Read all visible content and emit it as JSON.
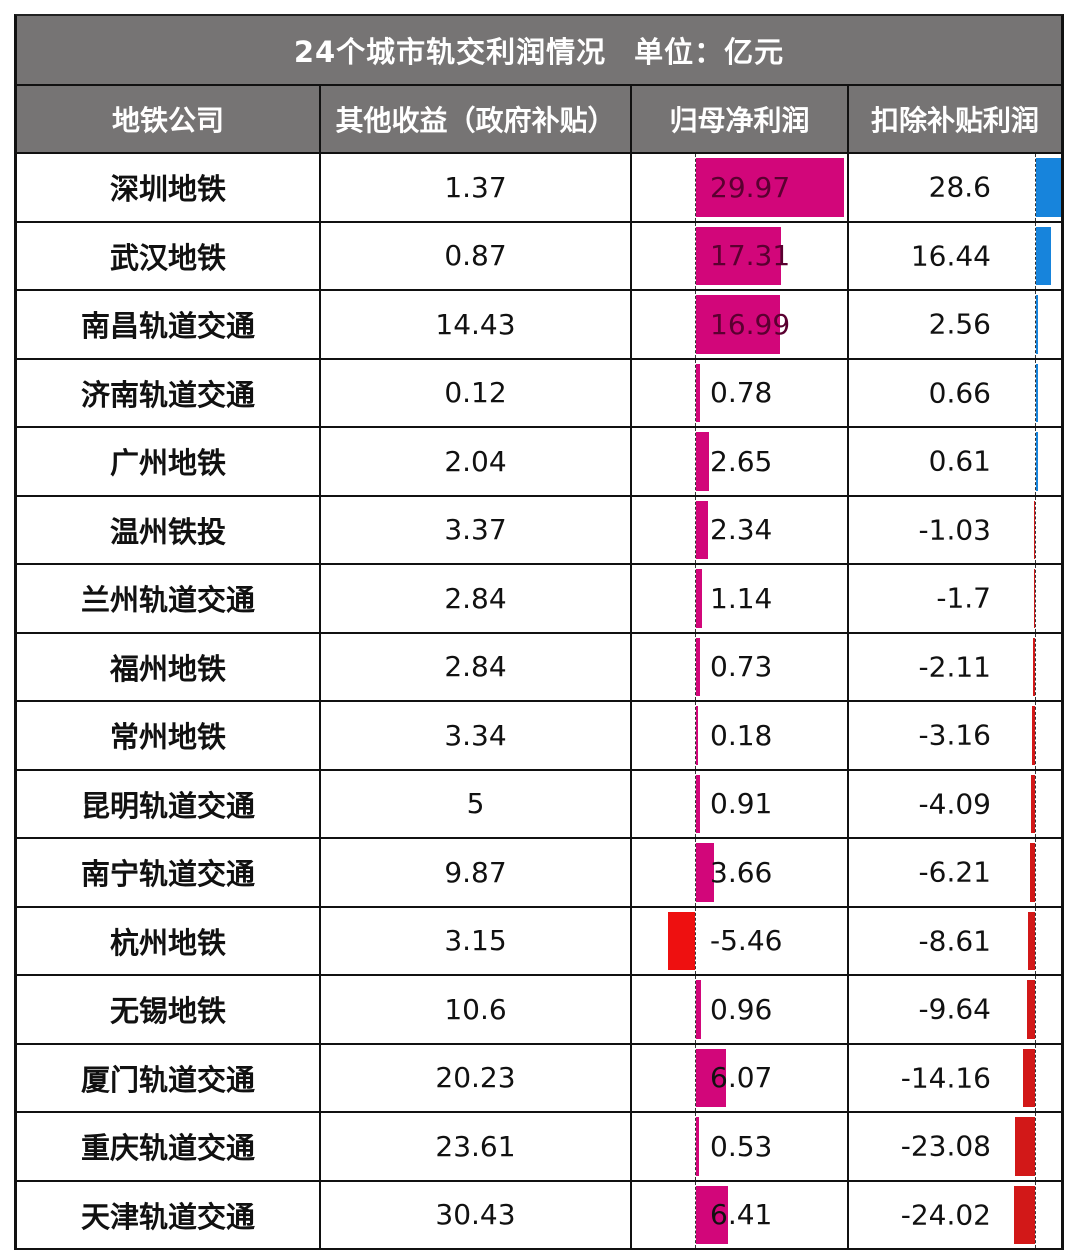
{
  "table": {
    "title": "24个城市轨交利润情况",
    "unit": "单位：亿元",
    "headers": [
      "地铁公司",
      "其他收益（政府补贴）",
      "归母净利润",
      "扣除补贴利润"
    ],
    "rows": [
      {
        "company": "深圳地铁",
        "subsidy": "1.37",
        "net_profit": "29.97",
        "ex_subsidy": "28.6"
      },
      {
        "company": "武汉地铁",
        "subsidy": "0.87",
        "net_profit": "17.31",
        "ex_subsidy": "16.44"
      },
      {
        "company": "南昌轨道交通",
        "subsidy": "14.43",
        "net_profit": "16.99",
        "ex_subsidy": "2.56"
      },
      {
        "company": "济南轨道交通",
        "subsidy": "0.12",
        "net_profit": "0.78",
        "ex_subsidy": "0.66"
      },
      {
        "company": "广州地铁",
        "subsidy": "2.04",
        "net_profit": "2.65",
        "ex_subsidy": "0.61"
      },
      {
        "company": "温州铁投",
        "subsidy": "3.37",
        "net_profit": "2.34",
        "ex_subsidy": "-1.03"
      },
      {
        "company": "兰州轨道交通",
        "subsidy": "2.84",
        "net_profit": "1.14",
        "ex_subsidy": "-1.7"
      },
      {
        "company": "福州地铁",
        "subsidy": "2.84",
        "net_profit": "0.73",
        "ex_subsidy": "-2.11"
      },
      {
        "company": "常州地铁",
        "subsidy": "3.34",
        "net_profit": "0.18",
        "ex_subsidy": "-3.16"
      },
      {
        "company": "昆明轨道交通",
        "subsidy": "5",
        "net_profit": "0.91",
        "ex_subsidy": "-4.09"
      },
      {
        "company": "南宁轨道交通",
        "subsidy": "9.87",
        "net_profit": "3.66",
        "ex_subsidy": "-6.21"
      },
      {
        "company": "杭州地铁",
        "subsidy": "3.15",
        "net_profit": "-5.46",
        "ex_subsidy": "-8.61"
      },
      {
        "company": "无锡地铁",
        "subsidy": "10.6",
        "net_profit": "0.96",
        "ex_subsidy": "-9.64"
      },
      {
        "company": "厦门轨道交通",
        "subsidy": "20.23",
        "net_profit": "6.07",
        "ex_subsidy": "-14.16"
      },
      {
        "company": "重庆轨道交通",
        "subsidy": "23.61",
        "net_profit": "0.53",
        "ex_subsidy": "-23.08"
      },
      {
        "company": "天津轨道交通",
        "subsidy": "30.43",
        "net_profit": "6.41",
        "ex_subsidy": "-24.02"
      }
    ]
  },
  "colors": {
    "header_bg": "#767474",
    "net_profit_positive_bar": "#d2067a",
    "net_profit_negative_bar": "#ee1010",
    "ex_subsidy_positive_bar": "#1784dc",
    "ex_subsidy_negative_bar": "#d21818"
  },
  "chart_data": {
    "type": "table",
    "title": "24个城市轨交利润情况 单位：亿元",
    "columns": [
      "地铁公司",
      "其他收益（政府补贴）",
      "归母净利润",
      "扣除补贴利润"
    ],
    "categories": [
      "深圳地铁",
      "武汉地铁",
      "南昌轨道交通",
      "济南轨道交通",
      "广州地铁",
      "温州铁投",
      "兰州轨道交通",
      "福州地铁",
      "常州地铁",
      "昆明轨道交通",
      "南宁轨道交通",
      "杭州地铁",
      "无锡地铁",
      "厦门轨道交通",
      "重庆轨道交通",
      "天津轨道交通"
    ],
    "series": [
      {
        "name": "其他收益（政府补贴）",
        "values": [
          1.37,
          0.87,
          14.43,
          0.12,
          2.04,
          3.37,
          2.84,
          2.84,
          3.34,
          5,
          9.87,
          3.15,
          10.6,
          20.23,
          23.61,
          30.43
        ]
      },
      {
        "name": "归母净利润",
        "values": [
          29.97,
          17.31,
          16.99,
          0.78,
          2.65,
          2.34,
          1.14,
          0.73,
          0.18,
          0.91,
          3.66,
          -5.46,
          0.96,
          6.07,
          0.53,
          6.41
        ],
        "data_bars": true
      },
      {
        "name": "扣除补贴利润",
        "values": [
          28.6,
          16.44,
          2.56,
          0.66,
          0.61,
          -1.03,
          -1.7,
          -2.11,
          -3.16,
          -4.09,
          -6.21,
          -8.61,
          -9.64,
          -14.16,
          -23.08,
          -24.02
        ],
        "data_bars": true
      }
    ],
    "unit": "亿元"
  }
}
